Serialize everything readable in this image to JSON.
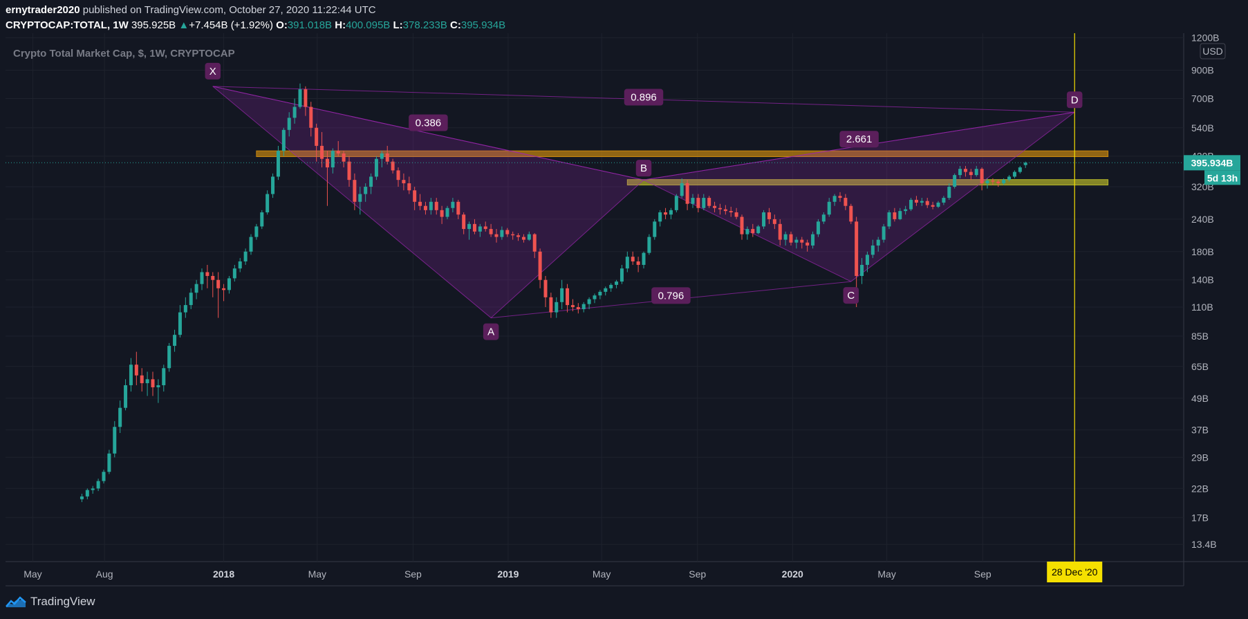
{
  "header": {
    "user": "ernytrader2020",
    "published": " published on TradingView.com, October 27, 2020 11:22:44 UTC",
    "symbol": "CRYPTOCAP:TOTAL, 1W",
    "last": "395.925B",
    "change": "+7.454B (+1.92%)",
    "o_label": "O:",
    "o_value": "391.018B",
    "h_label": "H:",
    "h_value": "400.095B",
    "l_label": "L:",
    "l_value": "378.233B",
    "c_label": "C:",
    "c_value": "395.934B"
  },
  "branding": {
    "name": "TradingView"
  },
  "colors": {
    "up": "#26a69a",
    "down": "#ef5350",
    "pattern": "#9c27b0",
    "zone_orange": "#c8870e",
    "zone_yellow": "#b5b52a",
    "date_line": "#f5e000"
  },
  "chart_data": {
    "type": "candlestick",
    "title": "Crypto Total Market Cap, $, 1W, CRYPTOCAP",
    "currency": "USD",
    "y_scale": "log",
    "ylim": [
      11500000000,
      1250000000000
    ],
    "y_ticks": [
      "1200B",
      "900B",
      "700B",
      "540B",
      "420B",
      "320B",
      "240B",
      "180B",
      "140B",
      "110B",
      "85B",
      "65B",
      "49B",
      "37B",
      "29B",
      "22B",
      "17B",
      "13.4B"
    ],
    "x_ticks": [
      "May",
      "Aug",
      "2018",
      "May",
      "Sep",
      "2019",
      "May",
      "Sep",
      "2020",
      "May",
      "Sep"
    ],
    "x_range": [
      "2017-03-27",
      "2021-05-17"
    ],
    "last_price_label": "395.934B",
    "countdown_label": "5d 13h",
    "date_marker": {
      "date": "2020-12-28",
      "label": "28 Dec '20"
    },
    "harmonic_pattern": {
      "points": [
        {
          "name": "X",
          "date": "2017-12-18",
          "value": 780
        },
        {
          "name": "A",
          "date": "2018-12-10",
          "value": 100
        },
        {
          "name": "B",
          "date": "2019-06-24",
          "value": 340
        },
        {
          "name": "C",
          "date": "2020-03-16",
          "value": 138
        },
        {
          "name": "D",
          "date": "2020-12-28",
          "value": 620
        }
      ],
      "ratios": [
        {
          "label": "0.386",
          "value": 0.386
        },
        {
          "label": "0.896",
          "value": 0.896
        },
        {
          "label": "2.661",
          "value": 2.661
        },
        {
          "label": "0.796",
          "value": 0.796
        }
      ]
    },
    "zones": [
      {
        "name": "resistance-zone",
        "from_date": "2018-02-12",
        "to_date": "2021-01-31",
        "low": 418,
        "high": 440
      },
      {
        "name": "support-zone",
        "from_date": "2019-06-03",
        "to_date": "2021-01-31",
        "low": 325,
        "high": 341
      }
    ],
    "candles_key": "weekly OHLC in $B",
    "candles": [
      [
        20,
        21,
        19.5,
        20.5
      ],
      [
        20.5,
        22,
        20,
        21.7
      ],
      [
        21.7,
        22.5,
        21,
        22
      ],
      [
        22,
        24,
        21.5,
        23.5
      ],
      [
        23.5,
        26,
        23,
        25.5
      ],
      [
        25.5,
        31,
        25,
        30
      ],
      [
        30,
        40,
        29,
        38
      ],
      [
        38,
        48,
        36,
        45
      ],
      [
        45,
        58,
        44,
        55
      ],
      [
        55,
        70,
        52,
        66
      ],
      [
        66,
        74,
        55,
        60
      ],
      [
        60,
        64,
        52,
        56
      ],
      [
        56,
        62,
        50,
        58
      ],
      [
        58,
        62,
        50,
        54
      ],
      [
        54,
        58,
        47,
        55
      ],
      [
        55,
        66,
        52,
        64
      ],
      [
        64,
        80,
        62,
        78
      ],
      [
        78,
        90,
        74,
        86
      ],
      [
        86,
        112,
        84,
        105
      ],
      [
        105,
        120,
        100,
        112
      ],
      [
        112,
        130,
        108,
        125
      ],
      [
        125,
        140,
        118,
        135
      ],
      [
        135,
        155,
        128,
        150
      ],
      [
        150,
        160,
        130,
        145
      ],
      [
        145,
        150,
        120,
        140
      ],
      [
        140,
        150,
        100,
        130
      ],
      [
        130,
        135,
        116,
        128
      ],
      [
        128,
        145,
        124,
        142
      ],
      [
        142,
        160,
        138,
        155
      ],
      [
        155,
        170,
        150,
        165
      ],
      [
        165,
        185,
        160,
        180
      ],
      [
        180,
        210,
        175,
        205
      ],
      [
        205,
        230,
        200,
        225
      ],
      [
        225,
        260,
        220,
        255
      ],
      [
        255,
        310,
        250,
        300
      ],
      [
        300,
        360,
        290,
        350
      ],
      [
        350,
        460,
        340,
        440
      ],
      [
        440,
        540,
        420,
        530
      ],
      [
        530,
        620,
        500,
        590
      ],
      [
        590,
        700,
        560,
        650
      ],
      [
        650,
        800,
        640,
        760
      ],
      [
        760,
        780,
        600,
        650
      ],
      [
        650,
        680,
        500,
        540
      ],
      [
        540,
        560,
        400,
        460
      ],
      [
        460,
        520,
        380,
        410
      ],
      [
        410,
        440,
        270,
        380
      ],
      [
        380,
        450,
        360,
        440
      ],
      [
        440,
        480,
        420,
        430
      ],
      [
        430,
        440,
        380,
        400
      ],
      [
        400,
        420,
        320,
        340
      ],
      [
        340,
        360,
        260,
        280
      ],
      [
        280,
        320,
        250,
        300
      ],
      [
        300,
        330,
        280,
        320
      ],
      [
        320,
        360,
        300,
        350
      ],
      [
        350,
        420,
        340,
        410
      ],
      [
        410,
        440,
        380,
        430
      ],
      [
        430,
        460,
        390,
        400
      ],
      [
        400,
        410,
        360,
        370
      ],
      [
        370,
        380,
        320,
        340
      ],
      [
        340,
        360,
        310,
        330
      ],
      [
        330,
        350,
        300,
        310
      ],
      [
        310,
        320,
        260,
        280
      ],
      [
        280,
        300,
        260,
        270
      ],
      [
        270,
        280,
        250,
        260
      ],
      [
        260,
        290,
        250,
        280
      ],
      [
        280,
        290,
        250,
        260
      ],
      [
        260,
        270,
        230,
        245
      ],
      [
        245,
        270,
        240,
        265
      ],
      [
        265,
        290,
        255,
        280
      ],
      [
        280,
        285,
        240,
        250
      ],
      [
        250,
        255,
        210,
        220
      ],
      [
        220,
        235,
        200,
        230
      ],
      [
        230,
        240,
        210,
        215
      ],
      [
        215,
        230,
        205,
        225
      ],
      [
        225,
        235,
        215,
        220
      ],
      [
        220,
        230,
        205,
        210
      ],
      [
        210,
        220,
        195,
        205
      ],
      [
        205,
        225,
        200,
        218
      ],
      [
        218,
        222,
        205,
        210
      ],
      [
        210,
        215,
        200,
        208
      ],
      [
        208,
        212,
        198,
        205
      ],
      [
        205,
        210,
        195,
        200
      ],
      [
        200,
        215,
        198,
        210
      ],
      [
        210,
        212,
        170,
        180
      ],
      [
        180,
        185,
        130,
        140
      ],
      [
        140,
        145,
        110,
        120
      ],
      [
        120,
        125,
        100,
        105
      ],
      [
        105,
        120,
        100,
        115
      ],
      [
        115,
        140,
        108,
        130
      ],
      [
        130,
        135,
        105,
        112
      ],
      [
        112,
        118,
        106,
        110
      ],
      [
        110,
        114,
        104,
        108
      ],
      [
        108,
        115,
        105,
        113
      ],
      [
        113,
        120,
        108,
        118
      ],
      [
        118,
        124,
        114,
        122
      ],
      [
        122,
        128,
        118,
        126
      ],
      [
        126,
        132,
        122,
        130
      ],
      [
        130,
        136,
        126,
        134
      ],
      [
        134,
        140,
        130,
        138
      ],
      [
        138,
        160,
        135,
        155
      ],
      [
        155,
        180,
        150,
        172
      ],
      [
        172,
        180,
        160,
        165
      ],
      [
        165,
        172,
        150,
        160
      ],
      [
        160,
        180,
        155,
        178
      ],
      [
        178,
        210,
        175,
        205
      ],
      [
        205,
        240,
        200,
        235
      ],
      [
        235,
        260,
        225,
        255
      ],
      [
        255,
        265,
        240,
        250
      ],
      [
        250,
        265,
        240,
        260
      ],
      [
        260,
        300,
        255,
        295
      ],
      [
        295,
        345,
        290,
        330
      ],
      [
        330,
        340,
        260,
        275
      ],
      [
        275,
        300,
        265,
        290
      ],
      [
        290,
        300,
        255,
        265
      ],
      [
        265,
        300,
        260,
        290
      ],
      [
        290,
        295,
        265,
        270
      ],
      [
        270,
        280,
        255,
        265
      ],
      [
        265,
        275,
        250,
        262
      ],
      [
        262,
        272,
        250,
        258
      ],
      [
        258,
        268,
        245,
        255
      ],
      [
        255,
        265,
        240,
        245
      ],
      [
        245,
        250,
        200,
        210
      ],
      [
        210,
        225,
        200,
        220
      ],
      [
        220,
        230,
        205,
        212
      ],
      [
        212,
        228,
        210,
        225
      ],
      [
        225,
        260,
        220,
        255
      ],
      [
        255,
        265,
        230,
        240
      ],
      [
        240,
        250,
        220,
        230
      ],
      [
        230,
        240,
        190,
        200
      ],
      [
        200,
        215,
        190,
        210
      ],
      [
        210,
        215,
        190,
        195
      ],
      [
        195,
        205,
        185,
        200
      ],
      [
        200,
        205,
        185,
        195
      ],
      [
        195,
        200,
        180,
        190
      ],
      [
        190,
        215,
        185,
        210
      ],
      [
        210,
        240,
        205,
        235
      ],
      [
        235,
        255,
        230,
        250
      ],
      [
        250,
        290,
        245,
        280
      ],
      [
        280,
        300,
        270,
        295
      ],
      [
        295,
        305,
        280,
        290
      ],
      [
        290,
        300,
        260,
        270
      ],
      [
        270,
        275,
        230,
        235
      ],
      [
        235,
        245,
        110,
        145
      ],
      [
        145,
        170,
        135,
        160
      ],
      [
        160,
        180,
        150,
        175
      ],
      [
        175,
        200,
        170,
        190
      ],
      [
        190,
        205,
        180,
        200
      ],
      [
        200,
        230,
        195,
        225
      ],
      [
        225,
        260,
        220,
        255
      ],
      [
        255,
        265,
        235,
        240
      ],
      [
        240,
        265,
        238,
        258
      ],
      [
        258,
        270,
        250,
        262
      ],
      [
        262,
        290,
        258,
        285
      ],
      [
        285,
        295,
        270,
        278
      ],
      [
        278,
        290,
        270,
        282
      ],
      [
        282,
        290,
        265,
        272
      ],
      [
        272,
        280,
        262,
        268
      ],
      [
        268,
        282,
        265,
        278
      ],
      [
        278,
        295,
        272,
        290
      ],
      [
        290,
        330,
        285,
        320
      ],
      [
        320,
        360,
        315,
        355
      ],
      [
        355,
        385,
        345,
        375
      ],
      [
        375,
        385,
        350,
        365
      ],
      [
        365,
        375,
        340,
        355
      ],
      [
        355,
        385,
        350,
        375
      ],
      [
        375,
        380,
        310,
        330
      ],
      [
        330,
        345,
        315,
        338
      ],
      [
        338,
        345,
        325,
        335
      ],
      [
        335,
        342,
        320,
        330
      ],
      [
        330,
        345,
        325,
        340
      ],
      [
        340,
        355,
        335,
        350
      ],
      [
        350,
        370,
        345,
        365
      ],
      [
        365,
        385,
        360,
        380
      ],
      [
        388,
        400,
        378,
        396
      ]
    ]
  }
}
